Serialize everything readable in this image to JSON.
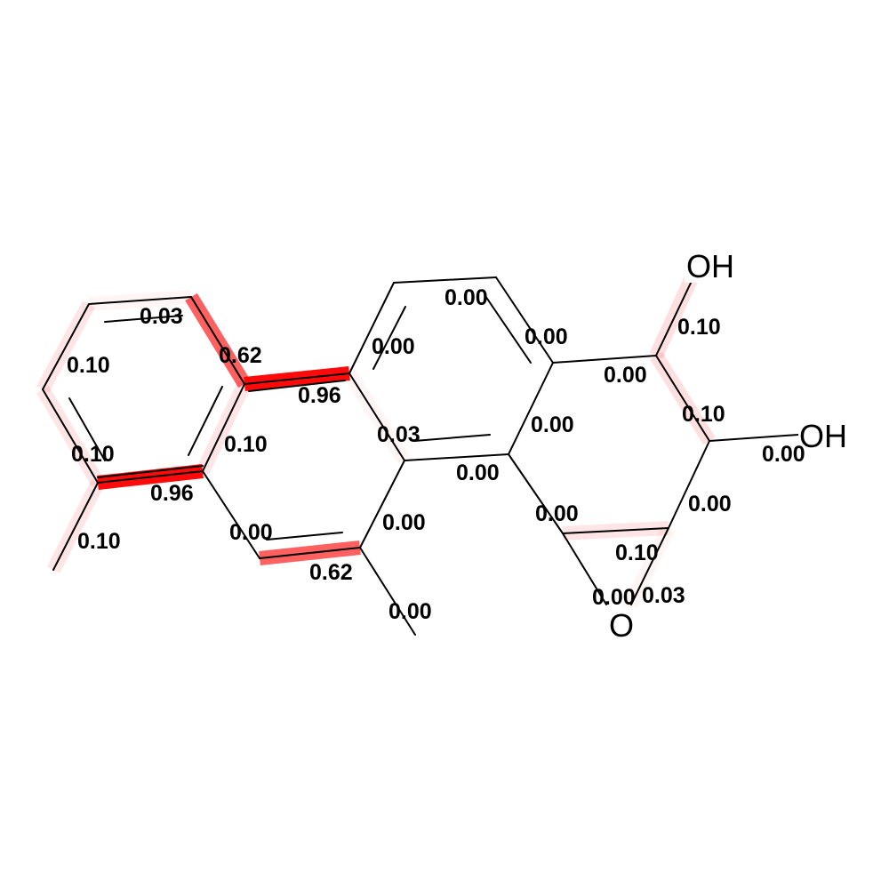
{
  "atoms": {
    "oh_top": "OH",
    "oh_right": "OH",
    "o_epoxide": "O"
  },
  "highlight_color": "#ff0000",
  "bond_weights": {
    "w1": "0.03",
    "w2": "0.62",
    "w3": "0.10",
    "w4": "0.96",
    "w5": "0.10",
    "w6": "0.10",
    "w7": "0.96",
    "w8": "0.10",
    "w9": "0.00",
    "w10": "0.62",
    "w11": "0.00",
    "w12": "0.00",
    "w13": "0.00",
    "w14": "0.00",
    "w15": "0.03",
    "w16": "0.00",
    "w17": "0.00",
    "w18": "0.00",
    "w19": "0.00",
    "w20": "0.10",
    "w21": "0.10",
    "w22": "0.00",
    "w23": "0.00",
    "w24": "0.10",
    "w25": "0.00",
    "w26": "0.03",
    "w27": "0.00"
  }
}
